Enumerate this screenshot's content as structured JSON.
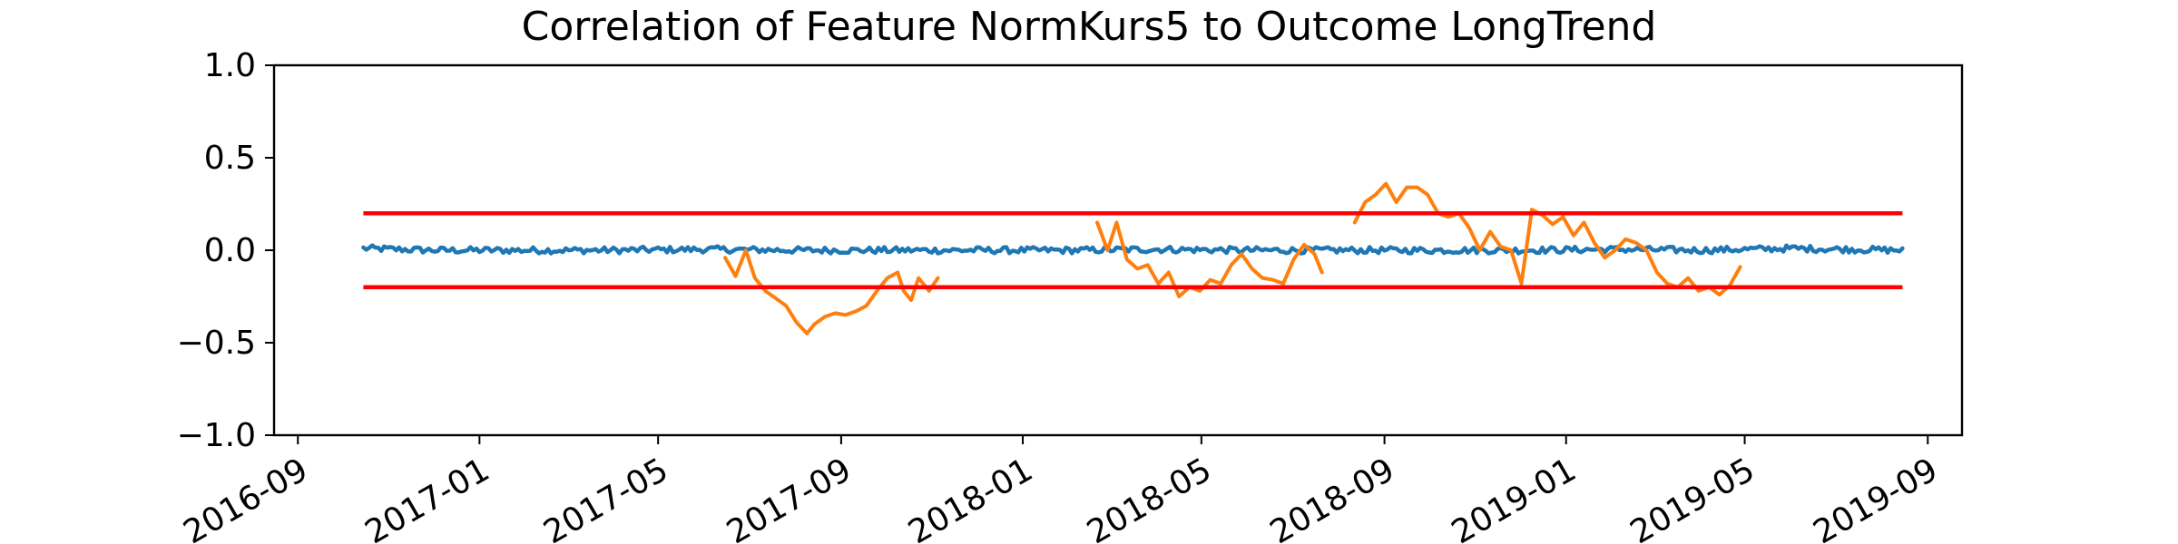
{
  "chart_data": {
    "type": "line",
    "title": "Correlation of Feature NormKurs5 to Outcome LongTrend",
    "xlabel": "",
    "ylabel": "",
    "xlim": [
      "2016-08-16",
      "2019-09-24"
    ],
    "ylim": [
      -1.0,
      1.0
    ],
    "x_ticks": [
      "2016-09",
      "2017-01",
      "2017-05",
      "2017-09",
      "2018-01",
      "2018-05",
      "2018-09",
      "2019-01",
      "2019-05",
      "2019-09"
    ],
    "y_ticks": [
      "1.0",
      "0.5",
      "0.0",
      "−0.5",
      "−1.0"
    ],
    "y_tick_values": [
      1.0,
      0.5,
      0.0,
      -0.5,
      -1.0
    ],
    "grid": false,
    "legend": "none",
    "colors": {
      "baseline": "#1f77b4",
      "correlation": "#ff7f0e",
      "thresholds": "#ff0000"
    },
    "threshold_lines": [
      {
        "y": 0.2,
        "x_start": "2016-10-15",
        "x_end": "2019-08-15"
      },
      {
        "y": -0.2,
        "x_start": "2016-10-15",
        "x_end": "2019-08-15"
      }
    ],
    "series": [
      {
        "color": "#1f77b4",
        "x": [
          "2016-10-15",
          "2016-12-01",
          "2017-02-01",
          "2017-04-01",
          "2017-06-01",
          "2017-08-01",
          "2017-10-01",
          "2017-12-01",
          "2018-02-01",
          "2018-04-01",
          "2018-06-01",
          "2018-08-01",
          "2018-10-01",
          "2018-12-01",
          "2019-02-01",
          "2019-04-01",
          "2019-06-01",
          "2019-08-15"
        ],
        "y": [
          0.01,
          0.0,
          0.0,
          0.0,
          0.005,
          0.0,
          0.0,
          0.0,
          0.0,
          0.005,
          0.0,
          0.0,
          0.0,
          0.0,
          0.005,
          0.0,
          0.01,
          0.0
        ]
      },
      {
        "color": "#ff7f0e",
        "x": [
          "2017-06-15",
          "2017-06-22",
          "2017-06-29",
          "2017-07-05",
          "2017-07-12",
          "2017-07-19",
          "2017-07-26",
          "2017-08-02",
          "2017-08-09",
          "2017-08-14",
          "2017-08-21",
          "2017-08-28",
          "2017-09-04",
          "2017-09-11",
          "2017-09-18",
          "2017-09-25",
          "2017-10-02",
          "2017-10-09",
          "2017-10-13",
          "2017-10-18",
          "2017-10-23",
          "2017-10-30",
          "2017-11-05"
        ],
        "y": [
          -0.04,
          -0.14,
          0.0,
          -0.15,
          -0.22,
          -0.26,
          -0.3,
          -0.39,
          -0.45,
          -0.4,
          -0.36,
          -0.34,
          -0.35,
          -0.33,
          -0.3,
          -0.22,
          -0.15,
          -0.12,
          -0.22,
          -0.27,
          -0.15,
          -0.22,
          -0.15
        ]
      },
      {
        "color": "#ff7f0e",
        "x": [
          "2018-02-20",
          "2018-02-27",
          "2018-03-05",
          "2018-03-12",
          "2018-03-19",
          "2018-03-26",
          "2018-04-02",
          "2018-04-09",
          "2018-04-16",
          "2018-04-23",
          "2018-04-30",
          "2018-05-07",
          "2018-05-14",
          "2018-05-21",
          "2018-05-28",
          "2018-06-04",
          "2018-06-11",
          "2018-06-18",
          "2018-06-25",
          "2018-07-02",
          "2018-07-09",
          "2018-07-16",
          "2018-07-21"
        ],
        "y": [
          0.15,
          0.0,
          0.15,
          -0.05,
          -0.1,
          -0.08,
          -0.18,
          -0.12,
          -0.25,
          -0.2,
          -0.22,
          -0.16,
          -0.18,
          -0.08,
          -0.02,
          -0.1,
          -0.15,
          -0.16,
          -0.18,
          -0.05,
          0.03,
          -0.02,
          -0.12
        ]
      },
      {
        "color": "#ff7f0e",
        "x": [
          "2018-08-12",
          "2018-08-19",
          "2018-08-26",
          "2018-09-02",
          "2018-09-09",
          "2018-09-16",
          "2018-09-23",
          "2018-09-30",
          "2018-10-07",
          "2018-10-14",
          "2018-10-21",
          "2018-10-28",
          "2018-11-04",
          "2018-11-11",
          "2018-11-18",
          "2018-11-25",
          "2018-12-02",
          "2018-12-09",
          "2018-12-16",
          "2018-12-23",
          "2018-12-30",
          "2019-01-06",
          "2019-01-13",
          "2019-01-20",
          "2019-01-27",
          "2019-02-03",
          "2019-02-10",
          "2019-02-17",
          "2019-02-24",
          "2019-03-03",
          "2019-03-10",
          "2019-03-17",
          "2019-03-24",
          "2019-03-31",
          "2019-04-07",
          "2019-04-14",
          "2019-04-21",
          "2019-04-28"
        ],
        "y": [
          0.15,
          0.26,
          0.3,
          0.36,
          0.26,
          0.34,
          0.34,
          0.3,
          0.2,
          0.18,
          0.2,
          0.12,
          0.0,
          0.1,
          0.02,
          0.0,
          -0.18,
          0.22,
          0.19,
          0.14,
          0.18,
          0.08,
          0.15,
          0.04,
          -0.04,
          0.0,
          0.06,
          0.04,
          0.0,
          -0.12,
          -0.18,
          -0.2,
          -0.15,
          -0.22,
          -0.2,
          -0.24,
          -0.19,
          -0.09
        ]
      }
    ]
  }
}
